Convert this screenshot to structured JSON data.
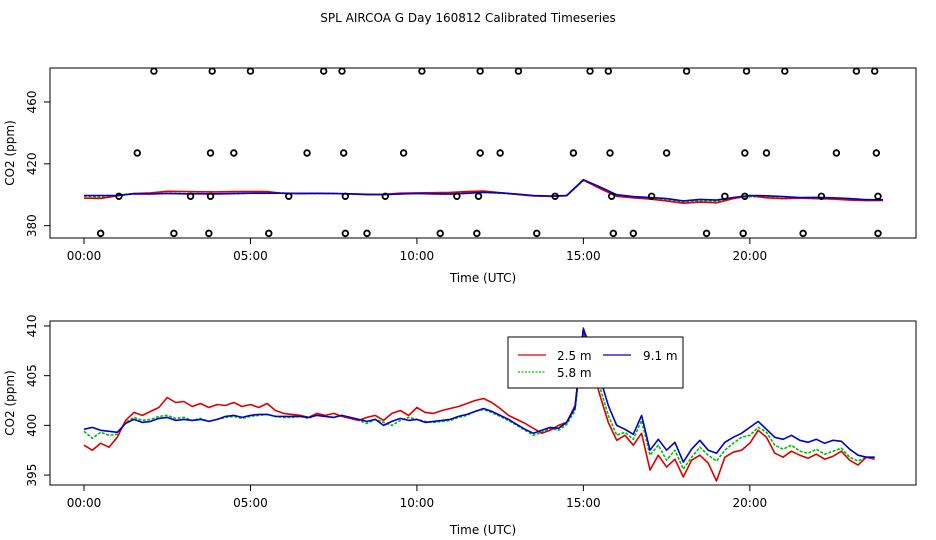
{
  "title": "SPL AIRCOA G  Day 160812  Calibrated Timeseries",
  "colors": {
    "2.5 m": "#dd0000",
    "5.8 m": "#00bb00",
    "9.1 m": "#0000cc",
    "markers": "#000000"
  },
  "chart_data": [
    {
      "type": "line",
      "panel": "top",
      "xlabel": "Time (UTC)",
      "ylabel": "CO2 (ppm)",
      "xlim": [
        0,
        24
      ],
      "ylim": [
        372,
        482
      ],
      "xticks": [
        0,
        5,
        10,
        15,
        20
      ],
      "xtick_labels": [
        "00:00",
        "05:00",
        "10:00",
        "15:00",
        "20:00"
      ],
      "yticks": [
        380,
        420,
        460
      ],
      "ytick_labels": [
        "380",
        "420",
        "460"
      ],
      "marker_levels": {
        "low": 375,
        "mid1": 399,
        "mid2": 427,
        "high": 480
      },
      "markers": {
        "type": "scatter",
        "marker": "circle",
        "x": [
          0.5,
          2.7,
          3.75,
          5.55,
          7.85,
          8.5,
          10.7,
          11.8,
          13.6,
          15.9,
          16.5,
          18.7,
          19.8,
          21.6,
          23.85,
          1.05,
          3.2,
          3.8,
          6.15,
          7.85,
          9.05,
          11.2,
          11.85,
          14.15,
          15.85,
          17.05,
          19.25,
          19.85,
          22.15,
          23.85,
          1.6,
          3.8,
          4.5,
          6.7,
          7.8,
          9.6,
          11.9,
          12.5,
          14.7,
          15.8,
          17.5,
          19.85,
          20.5,
          22.6,
          23.8,
          2.1,
          3.85,
          5.0,
          7.2,
          7.75,
          10.15,
          11.9,
          13.05,
          15.2,
          15.75,
          18.1,
          19.9,
          21.05,
          23.2,
          23.75
        ],
        "y": [
          375,
          375,
          375,
          375,
          375,
          375,
          375,
          375,
          375,
          375,
          375,
          375,
          375,
          375,
          375,
          399,
          399,
          399,
          399,
          399,
          399,
          399,
          399,
          399,
          399,
          399,
          399,
          399,
          399,
          399,
          427,
          427,
          427,
          427,
          427,
          427,
          427,
          427,
          427,
          427,
          427,
          427,
          427,
          427,
          427,
          480,
          480,
          480,
          480,
          480,
          480,
          480,
          480,
          480,
          480,
          480,
          480,
          480,
          480,
          480
        ]
      },
      "x": [
        0,
        0.5,
        1,
        1.5,
        2,
        2.5,
        3,
        3.5,
        4,
        4.5,
        5,
        5.5,
        6,
        6.5,
        7,
        7.5,
        8,
        8.5,
        9,
        9.5,
        10,
        10.5,
        11,
        11.5,
        12,
        12.5,
        13,
        13.5,
        14,
        14.5,
        15,
        15.5,
        16,
        16.5,
        17,
        17.5,
        18,
        18.5,
        19,
        19.5,
        20,
        20.5,
        21,
        21.5,
        22,
        22.5,
        23,
        23.5,
        24
      ],
      "series": [
        {
          "name": "2.5 m",
          "values": [
            397.8,
            397.6,
            399.3,
            400.8,
            401.2,
            402.2,
            402.1,
            401.9,
            401.8,
            402.0,
            402.1,
            402.0,
            400.8,
            400.9,
            400.9,
            400.8,
            400.5,
            400.0,
            400.2,
            401.0,
            401.2,
            401.3,
            401.5,
            402.0,
            402.4,
            401.3,
            400.2,
            399.2,
            399.0,
            399.3,
            409.5,
            404.0,
            399.0,
            398.0,
            397.2,
            396.0,
            394.5,
            395.2,
            394.8,
            397.5,
            399.5,
            398.0,
            397.5,
            397.8,
            397.5,
            397.2,
            396.5,
            396.2,
            396.3
          ]
        },
        {
          "name": "5.8 m",
          "values": [
            399.2,
            398.5,
            399.6,
            400.8,
            400.5,
            400.9,
            400.8,
            400.7,
            400.5,
            400.7,
            400.9,
            400.9,
            401.0,
            400.8,
            400.8,
            400.8,
            400.5,
            400.2,
            400.0,
            400.5,
            400.8,
            400.5,
            400.4,
            401.0,
            401.5,
            401.0,
            400.3,
            399.3,
            399.0,
            399.5,
            409.2,
            404.5,
            399.5,
            398.5,
            398.0,
            396.5,
            395.5,
            396.0,
            395.8,
            397.8,
            398.8,
            398.5,
            397.5,
            397.8,
            397.5,
            397.5,
            397.0,
            396.6,
            396.6
          ]
        },
        {
          "name": "9.1 m",
          "values": [
            399.5,
            399.5,
            399.5,
            400.6,
            400.5,
            400.8,
            400.6,
            400.6,
            400.6,
            400.7,
            401.0,
            401.0,
            401.0,
            400.7,
            400.9,
            400.8,
            400.6,
            400.3,
            400.1,
            400.5,
            400.8,
            400.6,
            400.4,
            400.9,
            401.6,
            401.2,
            400.5,
            399.5,
            399.2,
            399.5,
            409.7,
            405.0,
            400.0,
            398.8,
            398.2,
            397.5,
            396.0,
            397.0,
            396.5,
            398.2,
            399.5,
            399.3,
            398.8,
            398.2,
            398.3,
            398.0,
            397.5,
            396.8,
            396.8
          ]
        }
      ]
    },
    {
      "type": "line",
      "panel": "bottom",
      "xlabel": "Time (UTC)",
      "ylabel": "CO2 (ppm)",
      "xlim": [
        0,
        24
      ],
      "ylim": [
        394.0,
        410.5
      ],
      "xticks": [
        0,
        5,
        10,
        15,
        20
      ],
      "xtick_labels": [
        "00:00",
        "05:00",
        "10:00",
        "15:00",
        "20:00"
      ],
      "yticks": [
        395,
        400,
        405,
        410
      ],
      "ytick_labels": [
        "395",
        "400",
        "405",
        "410"
      ],
      "legend": {
        "placement": "top-right",
        "entries": [
          "2.5 m",
          "9.1 m",
          "5.8 m"
        ]
      },
      "x": [
        0,
        0.25,
        0.5,
        0.75,
        1,
        1.25,
        1.5,
        1.75,
        2,
        2.25,
        2.5,
        2.75,
        3,
        3.25,
        3.5,
        3.75,
        4,
        4.25,
        4.5,
        4.75,
        5,
        5.25,
        5.5,
        5.75,
        6,
        6.25,
        6.5,
        6.75,
        7,
        7.25,
        7.5,
        7.75,
        8,
        8.25,
        8.5,
        8.75,
        9,
        9.25,
        9.5,
        9.75,
        10,
        10.25,
        10.5,
        10.75,
        11,
        11.25,
        11.5,
        11.75,
        12,
        12.25,
        12.5,
        12.75,
        13,
        13.25,
        13.5,
        13.75,
        14,
        14.25,
        14.5,
        14.75,
        15,
        15.25,
        15.5,
        15.75,
        16,
        16.25,
        16.5,
        16.75,
        17,
        17.25,
        17.5,
        17.75,
        18,
        18.25,
        18.5,
        18.75,
        19,
        19.25,
        19.5,
        19.75,
        20,
        20.25,
        20.5,
        20.75,
        21,
        21.25,
        21.5,
        21.75,
        22,
        22.25,
        22.5,
        22.75,
        23,
        23.25,
        23.5,
        23.75
      ],
      "series": [
        {
          "name": "2.5 m",
          "values": [
            398.0,
            397.5,
            398.2,
            397.8,
            398.8,
            400.5,
            401.3,
            401.0,
            401.4,
            401.8,
            402.8,
            402.3,
            402.4,
            401.9,
            402.2,
            401.8,
            402.1,
            402.0,
            402.3,
            401.9,
            402.1,
            401.8,
            402.2,
            401.5,
            401.2,
            401.1,
            401.0,
            400.8,
            401.2,
            401.0,
            401.2,
            400.9,
            400.7,
            400.5,
            400.8,
            401.0,
            400.5,
            401.2,
            401.5,
            401.0,
            401.8,
            401.3,
            401.2,
            401.5,
            401.7,
            401.9,
            402.2,
            402.5,
            402.7,
            402.3,
            401.7,
            401.0,
            400.6,
            400.2,
            399.7,
            399.2,
            399.5,
            400.0,
            400.3,
            402.0,
            409.8,
            406.0,
            403.0,
            400.3,
            398.5,
            399.0,
            398.0,
            399.2,
            395.5,
            397.0,
            395.8,
            396.6,
            394.8,
            396.5,
            397.0,
            396.2,
            394.4,
            396.8,
            397.3,
            397.5,
            398.2,
            399.5,
            398.8,
            397.2,
            396.8,
            397.4,
            397.0,
            396.7,
            397.1,
            396.6,
            396.9,
            397.4,
            396.5,
            396.0,
            396.8,
            396.6
          ]
        },
        {
          "name": "5.8 m",
          "values": [
            399.4,
            398.7,
            399.3,
            399.0,
            399.1,
            400.3,
            400.8,
            400.5,
            400.6,
            400.9,
            401.0,
            400.7,
            400.8,
            400.5,
            400.7,
            400.4,
            400.6,
            400.8,
            400.9,
            400.7,
            400.9,
            401.0,
            401.1,
            400.9,
            400.8,
            400.8,
            400.9,
            400.7,
            401.1,
            400.9,
            400.8,
            401.0,
            400.7,
            400.5,
            400.2,
            400.6,
            400.3,
            400.0,
            400.5,
            400.8,
            400.6,
            400.4,
            400.3,
            400.4,
            400.5,
            400.8,
            401.0,
            401.4,
            401.6,
            401.3,
            400.9,
            400.5,
            400.0,
            399.5,
            399.0,
            399.3,
            399.7,
            399.5,
            400.1,
            401.5,
            409.2,
            406.5,
            403.8,
            401.0,
            399.0,
            399.3,
            398.6,
            400.5,
            397.0,
            398.0,
            396.5,
            397.5,
            395.6,
            396.8,
            397.8,
            397.0,
            396.4,
            397.5,
            398.2,
            398.8,
            399.0,
            399.8,
            399.3,
            398.0,
            397.6,
            398.0,
            397.4,
            397.2,
            397.6,
            397.1,
            397.4,
            397.7,
            396.8,
            396.4,
            396.8,
            396.8
          ]
        },
        {
          "name": "9.1 m",
          "values": [
            399.6,
            399.8,
            399.5,
            399.4,
            399.3,
            400.2,
            400.6,
            400.3,
            400.4,
            400.7,
            400.8,
            400.5,
            400.6,
            400.5,
            400.6,
            400.4,
            400.6,
            400.9,
            401.0,
            400.8,
            401.0,
            401.1,
            401.1,
            400.9,
            400.9,
            400.9,
            400.9,
            400.8,
            401.0,
            400.9,
            400.8,
            401.0,
            400.8,
            400.6,
            400.4,
            400.6,
            400.0,
            400.4,
            400.7,
            400.5,
            400.6,
            400.3,
            400.4,
            400.5,
            400.6,
            400.9,
            401.1,
            401.4,
            401.7,
            401.4,
            401.0,
            400.6,
            400.1,
            399.6,
            399.2,
            399.5,
            399.8,
            399.7,
            400.3,
            401.8,
            409.7,
            407.5,
            404.8,
            402.0,
            400.0,
            399.6,
            399.1,
            401.0,
            397.5,
            398.6,
            397.5,
            398.3,
            396.3,
            397.6,
            398.5,
            397.5,
            397.2,
            398.3,
            398.8,
            399.2,
            399.8,
            400.4,
            399.6,
            398.8,
            398.6,
            399.0,
            398.5,
            398.3,
            398.6,
            398.2,
            398.5,
            398.4,
            397.6,
            397.0,
            396.8,
            396.8
          ]
        }
      ]
    }
  ]
}
